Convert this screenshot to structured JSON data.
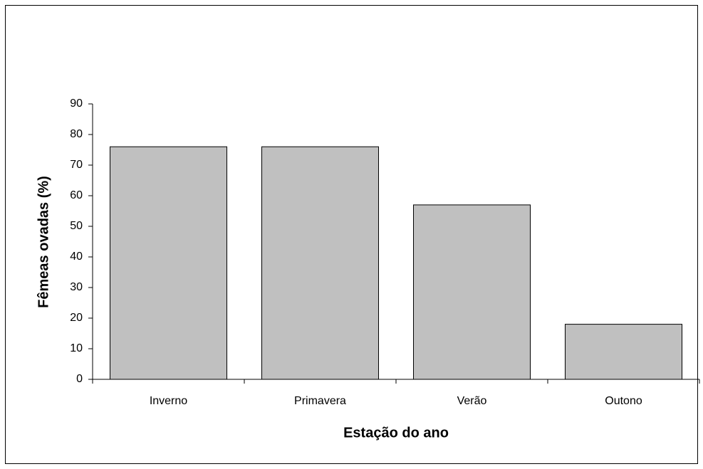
{
  "chart_data": {
    "type": "bar",
    "categories": [
      "Inverno",
      "Primavera",
      "Verão",
      "Outono"
    ],
    "values": [
      76,
      76,
      57,
      18
    ],
    "color": "#c0c0c0",
    "x_label": "Estação do ano",
    "y_label": "Fêmeas ovadas (%)",
    "ylim": [
      0,
      90
    ],
    "yticks": [
      0,
      10,
      20,
      30,
      40,
      50,
      60,
      70,
      80,
      90
    ],
    "grid": false
  }
}
